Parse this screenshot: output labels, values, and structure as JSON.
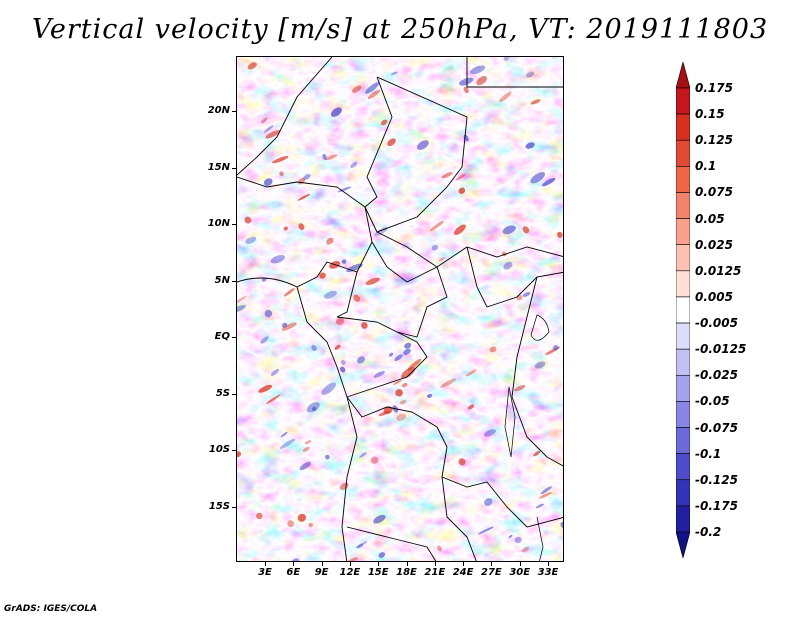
{
  "title": "Vertical velocity [m/s] at 250hPa, VT: 2019111803",
  "footer": "GrADS: IGES/COLA",
  "latitude_labels": [
    "20N",
    "15N",
    "10N",
    "5N",
    "EQ",
    "5S",
    "10S",
    "15S"
  ],
  "longitude_labels": [
    "3E",
    "6E",
    "9E",
    "12E",
    "15E",
    "18E",
    "21E",
    "24E",
    "27E",
    "30E",
    "33E"
  ],
  "colorbar": {
    "levels": [
      "0.175",
      "0.15",
      "0.125",
      "0.1",
      "0.075",
      "0.05",
      "0.025",
      "0.0125",
      "0.005",
      "-0.005",
      "-0.0125",
      "-0.025",
      "-0.05",
      "-0.075",
      "-0.1",
      "-0.125",
      "-0.175",
      "-0.2"
    ],
    "colors": [
      "#a50f15",
      "#c4161c",
      "#d7301f",
      "#e34a33",
      "#ef6548",
      "#f4836b",
      "#f9a08f",
      "#fcc1b3",
      "#fee0d6",
      "#ffffff",
      "#dcdcfb",
      "#c1c1f4",
      "#a3a3ee",
      "#8787e3",
      "#6a6ad8",
      "#4d4dcb",
      "#3333b8",
      "#2020a0",
      "#121288"
    ]
  },
  "colors": {
    "warm": "#d7301f",
    "cool": "#4d4dcb"
  }
}
